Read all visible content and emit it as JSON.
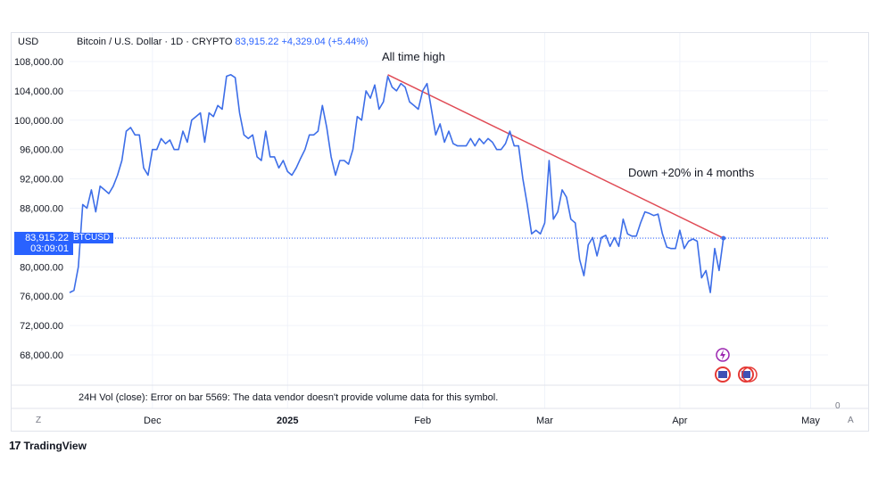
{
  "legend": {
    "currency": "USD",
    "symbol_line": "Bitcoin / U.S. Dollar · 1D · CRYPTO",
    "price": "83,915.22",
    "change": "+4,329.04 (+5.44%)"
  },
  "annotations": {
    "ath_label": "All time high",
    "down_label": "Down +20% in 4 months"
  },
  "price_tag": {
    "price": "83,915.22",
    "countdown": "03:09:01",
    "symbol": "BTCUSD"
  },
  "volume_note": "24H Vol (close): Error on bar 5569: The data vendor doesn't provide volume data for this symbol.",
  "corner": {
    "left": "Z",
    "right": "A",
    "zero": "0"
  },
  "branding": {
    "logo": "17",
    "name": "TradingView"
  },
  "colors": {
    "line": "#3d6ee8",
    "trend": "#e04b55",
    "accent": "#2962ff",
    "grid": "#f0f3fa"
  },
  "chart_data": {
    "type": "line",
    "title": "Bitcoin / U.S. Dollar · 1D · CRYPTO",
    "ylim": [
      64000,
      110000
    ],
    "y_ticks": [
      "108,000.00",
      "104,000.00",
      "100,000.00",
      "96,000.00",
      "92,000.00",
      "88,000.00",
      "84,000.00",
      "80,000.00",
      "76,000.00",
      "72,000.00",
      "68,000.00"
    ],
    "y_tick_values": [
      108000,
      104000,
      100000,
      96000,
      92000,
      88000,
      84000,
      80000,
      76000,
      72000,
      68000
    ],
    "x_range": [
      "2024-11-12",
      "2025-05-05"
    ],
    "x_tick_labels": [
      {
        "label": "Dec",
        "date": "2024-12-01"
      },
      {
        "label": "2025",
        "date": "2025-01-01"
      },
      {
        "label": "Feb",
        "date": "2025-02-01"
      },
      {
        "label": "Mar",
        "date": "2025-03-01"
      },
      {
        "label": "Apr",
        "date": "2025-04-01"
      },
      {
        "label": "May",
        "date": "2025-05-01"
      }
    ],
    "series": [
      {
        "name": "BTCUSD",
        "points": [
          [
            "2024-11-12",
            76500
          ],
          [
            "2024-11-13",
            76800
          ],
          [
            "2024-11-14",
            80000
          ],
          [
            "2024-11-15",
            88500
          ],
          [
            "2024-11-16",
            88000
          ],
          [
            "2024-11-17",
            90500
          ],
          [
            "2024-11-18",
            87500
          ],
          [
            "2024-11-19",
            91000
          ],
          [
            "2024-11-20",
            90500
          ],
          [
            "2024-11-21",
            90000
          ],
          [
            "2024-11-22",
            91000
          ],
          [
            "2024-11-23",
            92500
          ],
          [
            "2024-11-24",
            94500
          ],
          [
            "2024-11-25",
            98500
          ],
          [
            "2024-11-26",
            99000
          ],
          [
            "2024-11-27",
            98000
          ],
          [
            "2024-11-28",
            98000
          ],
          [
            "2024-11-29",
            93500
          ],
          [
            "2024-11-30",
            92500
          ],
          [
            "2024-12-01",
            96000
          ],
          [
            "2024-12-02",
            96000
          ],
          [
            "2024-12-03",
            97500
          ],
          [
            "2024-12-04",
            96800
          ],
          [
            "2024-12-05",
            97300
          ],
          [
            "2024-12-06",
            96000
          ],
          [
            "2024-12-07",
            96000
          ],
          [
            "2024-12-08",
            98500
          ],
          [
            "2024-12-09",
            97000
          ],
          [
            "2024-12-10",
            100000
          ],
          [
            "2024-12-11",
            100500
          ],
          [
            "2024-12-12",
            101000
          ],
          [
            "2024-12-13",
            97000
          ],
          [
            "2024-12-14",
            101000
          ],
          [
            "2024-12-15",
            100500
          ],
          [
            "2024-12-16",
            102000
          ],
          [
            "2024-12-17",
            101500
          ],
          [
            "2024-12-18",
            106000
          ],
          [
            "2024-12-19",
            106200
          ],
          [
            "2024-12-20",
            105800
          ],
          [
            "2024-12-21",
            101000
          ],
          [
            "2024-12-22",
            98000
          ],
          [
            "2024-12-23",
            97500
          ],
          [
            "2024-12-24",
            98000
          ],
          [
            "2024-12-25",
            95000
          ],
          [
            "2024-12-26",
            94500
          ],
          [
            "2024-12-27",
            98500
          ],
          [
            "2024-12-28",
            95000
          ],
          [
            "2024-12-29",
            95000
          ],
          [
            "2024-12-30",
            93500
          ],
          [
            "2024-12-31",
            94500
          ],
          [
            "2025-01-01",
            93000
          ],
          [
            "2025-01-02",
            92500
          ],
          [
            "2025-01-03",
            93500
          ],
          [
            "2025-01-04",
            94800
          ],
          [
            "2025-01-05",
            96000
          ],
          [
            "2025-01-06",
            98000
          ],
          [
            "2025-01-07",
            98000
          ],
          [
            "2025-01-08",
            98500
          ],
          [
            "2025-01-09",
            102000
          ],
          [
            "2025-01-10",
            99000
          ],
          [
            "2025-01-11",
            95000
          ],
          [
            "2025-01-12",
            92500
          ],
          [
            "2025-01-13",
            94500
          ],
          [
            "2025-01-14",
            94500
          ],
          [
            "2025-01-15",
            94000
          ],
          [
            "2025-01-16",
            96000
          ],
          [
            "2025-01-17",
            100500
          ],
          [
            "2025-01-18",
            100000
          ],
          [
            "2025-01-19",
            104000
          ],
          [
            "2025-01-20",
            103000
          ],
          [
            "2025-01-21",
            104800
          ],
          [
            "2025-01-22",
            101500
          ],
          [
            "2025-01-23",
            102500
          ],
          [
            "2025-01-24",
            106000
          ],
          [
            "2025-01-25",
            104500
          ],
          [
            "2025-01-26",
            104000
          ],
          [
            "2025-01-27",
            105000
          ],
          [
            "2025-01-28",
            104500
          ],
          [
            "2025-01-29",
            102500
          ],
          [
            "2025-01-30",
            102000
          ],
          [
            "2025-01-31",
            101500
          ],
          [
            "2025-02-01",
            104000
          ],
          [
            "2025-02-02",
            105000
          ],
          [
            "2025-02-03",
            101500
          ],
          [
            "2025-02-04",
            98000
          ],
          [
            "2025-02-05",
            99500
          ],
          [
            "2025-02-06",
            97000
          ],
          [
            "2025-02-07",
            98500
          ],
          [
            "2025-02-08",
            96800
          ],
          [
            "2025-02-09",
            96500
          ],
          [
            "2025-02-10",
            96500
          ],
          [
            "2025-02-11",
            96500
          ],
          [
            "2025-02-12",
            97500
          ],
          [
            "2025-02-13",
            96500
          ],
          [
            "2025-02-14",
            97500
          ],
          [
            "2025-02-15",
            96800
          ],
          [
            "2025-02-16",
            97500
          ],
          [
            "2025-02-17",
            97000
          ],
          [
            "2025-02-18",
            96000
          ],
          [
            "2025-02-19",
            96000
          ],
          [
            "2025-02-20",
            96800
          ],
          [
            "2025-02-21",
            98500
          ],
          [
            "2025-02-22",
            96500
          ],
          [
            "2025-02-23",
            96500
          ],
          [
            "2025-02-24",
            92000
          ],
          [
            "2025-02-25",
            88500
          ],
          [
            "2025-02-26",
            84500
          ],
          [
            "2025-02-27",
            85000
          ],
          [
            "2025-02-28",
            84500
          ],
          [
            "2025-03-01",
            86000
          ],
          [
            "2025-03-02",
            94500
          ],
          [
            "2025-03-03",
            86500
          ],
          [
            "2025-03-04",
            87500
          ],
          [
            "2025-03-05",
            90500
          ],
          [
            "2025-03-06",
            89500
          ],
          [
            "2025-03-07",
            86500
          ],
          [
            "2025-03-08",
            86000
          ],
          [
            "2025-03-09",
            81000
          ],
          [
            "2025-03-10",
            78800
          ],
          [
            "2025-03-11",
            83000
          ],
          [
            "2025-03-12",
            84000
          ],
          [
            "2025-03-13",
            81500
          ],
          [
            "2025-03-14",
            84000
          ],
          [
            "2025-03-15",
            84300
          ],
          [
            "2025-03-16",
            82800
          ],
          [
            "2025-03-17",
            84000
          ],
          [
            "2025-03-18",
            82800
          ],
          [
            "2025-03-19",
            86500
          ],
          [
            "2025-03-20",
            84500
          ],
          [
            "2025-03-21",
            84200
          ],
          [
            "2025-03-22",
            84200
          ],
          [
            "2025-03-23",
            86000
          ],
          [
            "2025-03-24",
            87500
          ],
          [
            "2025-03-25",
            87300
          ],
          [
            "2025-03-26",
            87000
          ],
          [
            "2025-03-27",
            87200
          ],
          [
            "2025-03-28",
            84500
          ],
          [
            "2025-03-29",
            82700
          ],
          [
            "2025-03-30",
            82500
          ],
          [
            "2025-03-31",
            82500
          ],
          [
            "2025-04-01",
            85000
          ],
          [
            "2025-04-02",
            82500
          ],
          [
            "2025-04-03",
            83500
          ],
          [
            "2025-04-04",
            83800
          ],
          [
            "2025-04-05",
            83500
          ],
          [
            "2025-04-06",
            78500
          ],
          [
            "2025-04-07",
            79500
          ],
          [
            "2025-04-08",
            76500
          ],
          [
            "2025-04-09",
            82500
          ],
          [
            "2025-04-10",
            79500
          ],
          [
            "2025-04-11",
            83915
          ]
        ]
      }
    ],
    "trendline": {
      "start": [
        "2025-01-24",
        106200
      ],
      "end": [
        "2025-04-11",
        83915
      ]
    },
    "current_price_line": 83915.22,
    "grid": true,
    "annotations": [
      "All time high",
      "Down +20% in 4 months"
    ]
  }
}
